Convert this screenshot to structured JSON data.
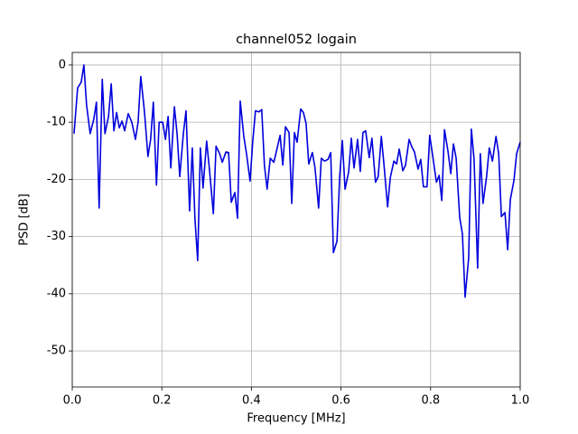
{
  "chart_data": {
    "type": "line",
    "title": "channel052 logain",
    "x_label": "Frequency [MHz]",
    "y_label": "PSD [dB]",
    "x": [
      0.004,
      0.012,
      0.02,
      0.026,
      0.032,
      0.04,
      0.048,
      0.054,
      0.06,
      0.067,
      0.073,
      0.081,
      0.087,
      0.093,
      0.099,
      0.105,
      0.111,
      0.117,
      0.125,
      0.133,
      0.141,
      0.147,
      0.153,
      0.161,
      0.169,
      0.175,
      0.181,
      0.188,
      0.194,
      0.202,
      0.208,
      0.214,
      0.22,
      0.228,
      0.234,
      0.24,
      0.248,
      0.254,
      0.262,
      0.268,
      0.274,
      0.28,
      0.286,
      0.292,
      0.3,
      0.306,
      0.315,
      0.321,
      0.329,
      0.335,
      0.343,
      0.349,
      0.355,
      0.363,
      0.369,
      0.375,
      0.383,
      0.389,
      0.397,
      0.403,
      0.409,
      0.417,
      0.423,
      0.429,
      0.435,
      0.442,
      0.45,
      0.456,
      0.464,
      0.47,
      0.476,
      0.484,
      0.49,
      0.496,
      0.502,
      0.51,
      0.516,
      0.522,
      0.528,
      0.536,
      0.542,
      0.55,
      0.556,
      0.563,
      0.571,
      0.577,
      0.583,
      0.591,
      0.597,
      0.603,
      0.609,
      0.617,
      0.623,
      0.629,
      0.637,
      0.643,
      0.649,
      0.655,
      0.663,
      0.669,
      0.677,
      0.683,
      0.69,
      0.696,
      0.704,
      0.71,
      0.718,
      0.724,
      0.73,
      0.738,
      0.744,
      0.752,
      0.758,
      0.764,
      0.772,
      0.778,
      0.784,
      0.792,
      0.798,
      0.804,
      0.813,
      0.819,
      0.825,
      0.831,
      0.839,
      0.845,
      0.851,
      0.857,
      0.865,
      0.871,
      0.877,
      0.885,
      0.891,
      0.897,
      0.905,
      0.911,
      0.917,
      0.925,
      0.931,
      0.938,
      0.946,
      0.952,
      0.958,
      0.966,
      0.972,
      0.978,
      0.986,
      0.992,
      1.0
    ],
    "series": [
      {
        "name": "channel052",
        "color": "#0000dd",
        "values": [
          -12,
          -4,
          -3,
          0,
          -7,
          -12,
          -9.5,
          -6.5,
          -25,
          -2.5,
          -12,
          -9,
          -3.3,
          -11.5,
          -8.3,
          -11,
          -9.8,
          -11.5,
          -8.5,
          -10,
          -13,
          -10,
          -2,
          -8,
          -16,
          -13,
          -6.5,
          -21,
          -10,
          -10,
          -13,
          -9,
          -18,
          -7.3,
          -12,
          -19.5,
          -12,
          -8,
          -25.5,
          -14.5,
          -27,
          -34.2,
          -14.5,
          -21.5,
          -13.3,
          -18,
          -26,
          -14.2,
          -15.5,
          -17,
          -15.2,
          -15.3,
          -24,
          -22.3,
          -26.8,
          -6.3,
          -12.5,
          -15.5,
          -20.3,
          -13.3,
          -8,
          -8.2,
          -7.8,
          -17.5,
          -21.7,
          -16.3,
          -17,
          -15,
          -12.3,
          -17.5,
          -10.8,
          -11.8,
          -24.2,
          -11.8,
          -13.5,
          -7.7,
          -8.3,
          -10.2,
          -17.3,
          -15.3,
          -18,
          -25,
          -16.3,
          -16.8,
          -16.5,
          -15.3,
          -32.8,
          -30.8,
          -19.5,
          -13.2,
          -21.7,
          -18.7,
          -12.8,
          -18,
          -13,
          -18.6,
          -11.8,
          -11.5,
          -16.2,
          -12.8,
          -20.5,
          -19.5,
          -12.5,
          -17.5,
          -24.8,
          -19.7,
          -16.8,
          -17.3,
          -14.7,
          -18.5,
          -17.5,
          -13,
          -14.3,
          -15.2,
          -18.2,
          -16.5,
          -21.3,
          -21.3,
          -12.3,
          -15.5,
          -20.5,
          -19.3,
          -23.7,
          -11.3,
          -15.2,
          -19,
          -13.8,
          -16.3,
          -26.7,
          -29.5,
          -40.6,
          -33.7,
          -11.2,
          -16.5,
          -35.5,
          -15.5,
          -24.2,
          -19.5,
          -14.5,
          -16.8,
          -12.5,
          -15.5,
          -26.5,
          -25.8,
          -32.3,
          -23.5,
          -20.2,
          -15.5,
          -13.5
        ]
      }
    ],
    "xlim": [
      0,
      1
    ],
    "xticks": [
      {
        "value": 0,
        "label": "0.0"
      },
      0.2,
      0.4,
      0.6,
      0.8,
      {
        "value": 1,
        "label": "1.0"
      }
    ],
    "ylim": [
      -56.3,
      2.2
    ],
    "yticks": [
      0,
      -10,
      -20,
      -30,
      -40,
      -50
    ],
    "grid": true
  }
}
